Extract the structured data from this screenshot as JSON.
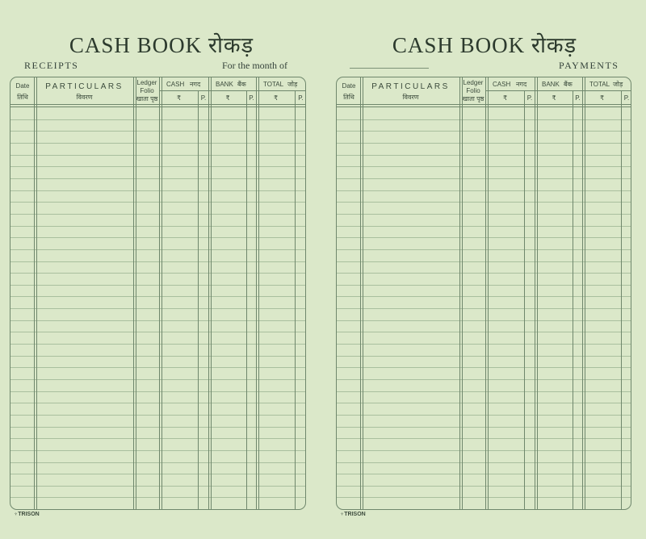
{
  "colors": {
    "background": "#dbe8c9",
    "rule": "#6f876c",
    "text": "#2f3d30"
  },
  "pages": [
    {
      "title": "CASH BOOK रोकड़",
      "section_label": "RECEIPTS",
      "month_label": "For the month of",
      "brand": "TRISON",
      "brand_icon": "trison-logo-icon"
    },
    {
      "title": "CASH BOOK रोकड़",
      "section_label": "PAYMENTS",
      "brand": "TRISON",
      "brand_icon": "trison-logo-icon"
    }
  ],
  "columns": {
    "date": {
      "en": "Date",
      "hi": "तिथि"
    },
    "particulars": {
      "en": "PARTICULARS",
      "hi": "विवरण"
    },
    "ledger": {
      "en1": "Ledger",
      "en2": "Folio",
      "hi": "खाता पृष्ठ"
    },
    "cash": {
      "en": "CASH",
      "hi": "नगद"
    },
    "bank": {
      "en": "BANK",
      "hi": "बैंक"
    },
    "total": {
      "en": "TOTAL",
      "hi": "जोड़"
    },
    "rupee": "₹",
    "paise": "P."
  }
}
